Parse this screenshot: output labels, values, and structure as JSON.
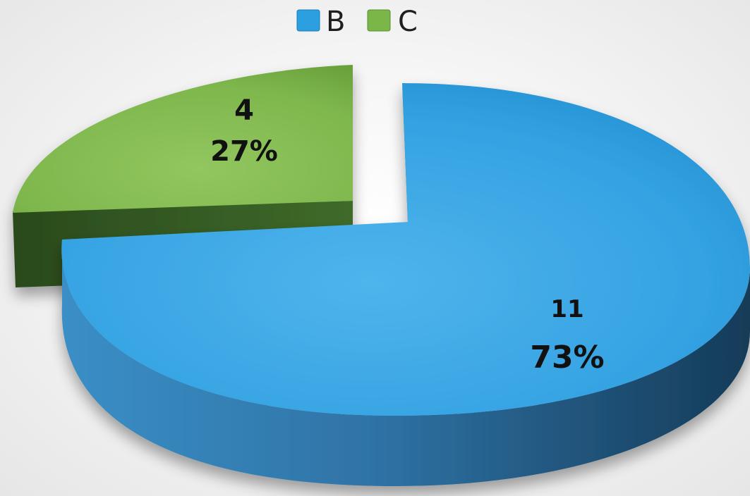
{
  "chart_data": {
    "type": "pie",
    "style": "3d-exploded",
    "legend_position": "top",
    "slices": [
      {
        "name": "B",
        "value": 11,
        "percent_label": "73%",
        "color": "#2b9fe0"
      },
      {
        "name": "C",
        "value": 4,
        "percent_label": "27%",
        "color": "#7ab648"
      }
    ]
  }
}
